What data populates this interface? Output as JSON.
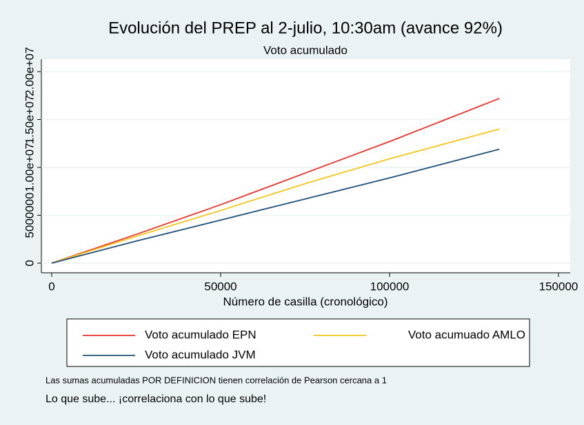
{
  "chart_data": {
    "type": "line",
    "title": "Evolución del PREP al 2-julio, 10:30am (avance 92%)",
    "subtitle": "Voto acumulado",
    "x_label": "Número de casilla (cronológico)",
    "x": [
      0,
      25000,
      50000,
      75000,
      100000,
      132500
    ],
    "series": [
      {
        "name": "Voto acumulado EPN",
        "color": "#e8302a",
        "values": [
          0,
          3000000,
          6100000,
          9400000,
          12700000,
          17200000
        ]
      },
      {
        "name": "Voto acumuado AMLO",
        "color": "#f5c518",
        "values": [
          0,
          2800000,
          5500000,
          8300000,
          10900000,
          14000000
        ]
      },
      {
        "name": "Voto acumulado JVM",
        "color": "#1f4e79",
        "values": [
          0,
          2300000,
          4500000,
          6700000,
          8900000,
          11900000
        ]
      }
    ],
    "xlim": [
      0,
      150000
    ],
    "xticks": [
      0,
      50000,
      100000,
      150000
    ],
    "ylim": [
      0,
      20000000
    ],
    "yticks": [
      0,
      5000000,
      {
        "value": 10000000,
        "label": "1.00e+07"
      },
      {
        "value": 15000000,
        "label": "1.50e+07"
      },
      {
        "value": 20000000,
        "label": "2.00e+07"
      }
    ],
    "grid": true,
    "notes": [
      "Las sumas acumuladas POR DEFINICION tienen correlación de Pearson cercana a 1",
      "Lo que sube... ¡correlaciona con lo que sube!"
    ]
  }
}
